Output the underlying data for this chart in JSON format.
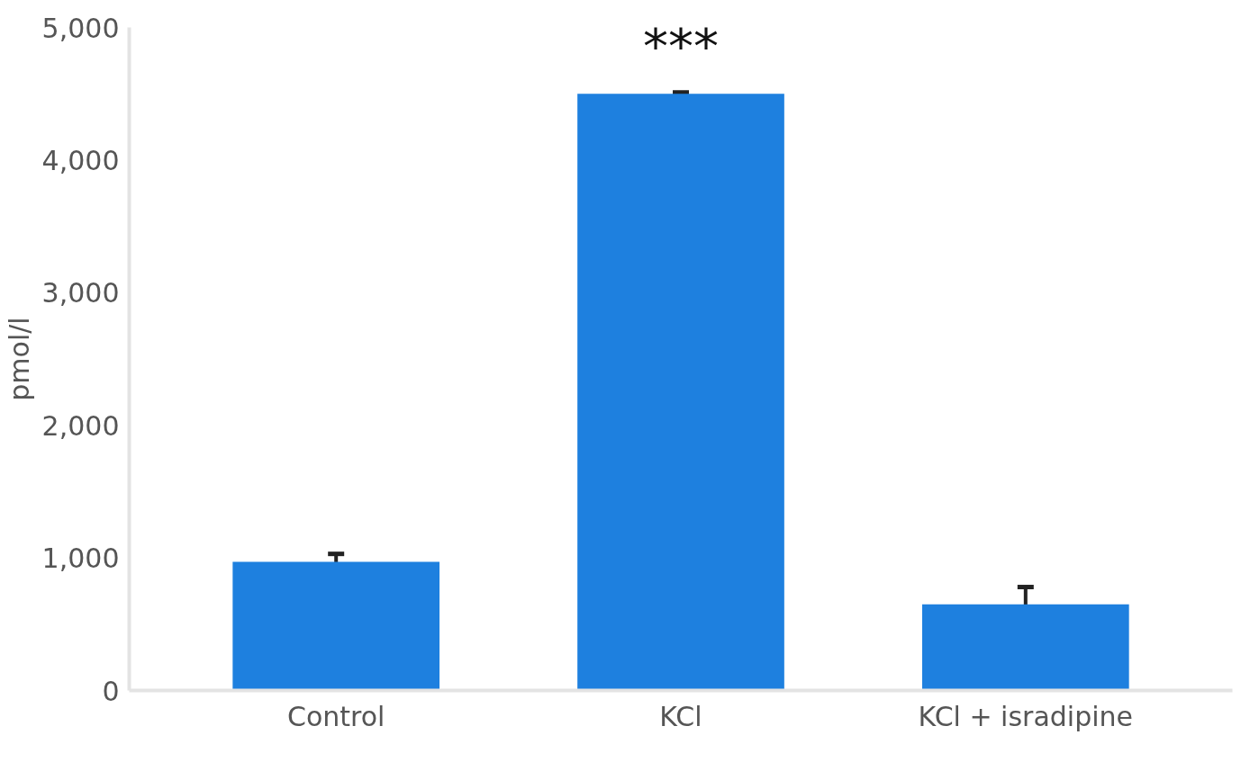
{
  "chart_data": {
    "type": "bar",
    "ylabel": "pmol/l",
    "categories": [
      "Control",
      "KCl",
      "KCl + isradipine"
    ],
    "values": [
      970,
      4500,
      650
    ],
    "errors": [
      60,
      10,
      130
    ],
    "color": "#1e80df",
    "ylim": [
      0,
      5000
    ],
    "yticks": [
      {
        "value": 0,
        "label": "0"
      },
      {
        "value": 1000,
        "label": "1,000"
      },
      {
        "value": 2000,
        "label": "2,000"
      },
      {
        "value": 3000,
        "label": "3,000"
      },
      {
        "value": 4000,
        "label": "4,000"
      },
      {
        "value": 5000,
        "label": "5,000"
      }
    ],
    "annotations": [
      {
        "text": "***",
        "x": "KCl",
        "y": 4500
      }
    ],
    "grid": false
  }
}
